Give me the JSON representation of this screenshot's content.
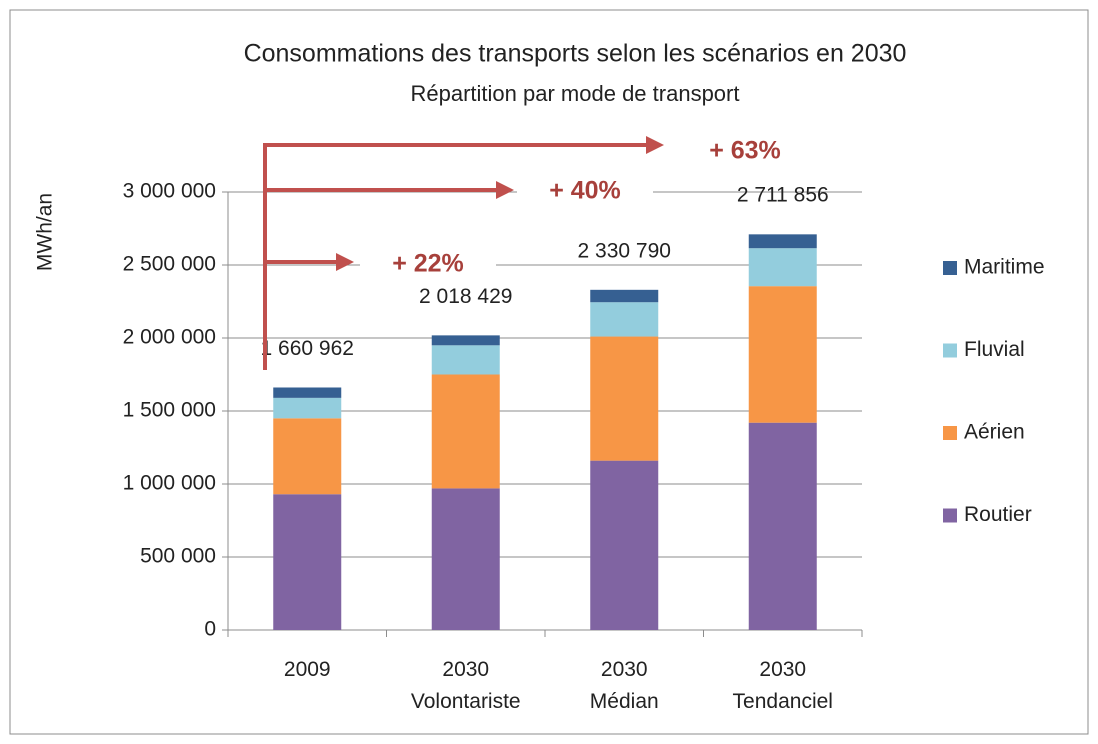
{
  "chart_data": {
    "type": "stacked_bar",
    "title": "Consommations des transports selon les scénarios en 2030",
    "subtitle": "Répartition par mode de transport",
    "y_label": "MWh/an",
    "categories": [
      [
        "2009"
      ],
      [
        "2030",
        "Volontariste"
      ],
      [
        "2030",
        "Médian"
      ],
      [
        "2030",
        "Tendanciel"
      ]
    ],
    "series": [
      {
        "name": "Routier",
        "color": "#8064a2",
        "values": [
          930000,
          970000,
          1160000,
          1420000
        ]
      },
      {
        "name": "Aérien",
        "color": "#f79646",
        "values": [
          520000,
          780000,
          850000,
          935000
        ]
      },
      {
        "name": "Fluvial",
        "color": "#93cddd",
        "values": [
          140000,
          200000,
          235000,
          260000
        ]
      },
      {
        "name": "Maritime",
        "color": "#366092",
        "values": [
          71000,
          68000,
          85000,
          95000
        ]
      }
    ],
    "totals": [
      1660962,
      2018429,
      2330790,
      2711856
    ],
    "total_labels": [
      "1 660 962",
      "2 018 429",
      "2 330 790",
      "2 711 856"
    ],
    "annotations": [
      "+ 22%",
      "+ 40%",
      "+ 63%"
    ],
    "ylim": [
      0,
      3000000
    ],
    "yticks": [
      0,
      {
        "value": 500000,
        "label": "500 000"
      },
      {
        "value": 1000000,
        "label": "1 000 000"
      },
      {
        "value": 1500000,
        "label": "1 500 000"
      },
      {
        "value": 2000000,
        "label": "2 000 000"
      },
      {
        "value": 2500000,
        "label": "2 500 000"
      },
      {
        "value": 3000000,
        "label": "3 000 000"
      }
    ],
    "grid": true,
    "legend": "right"
  }
}
